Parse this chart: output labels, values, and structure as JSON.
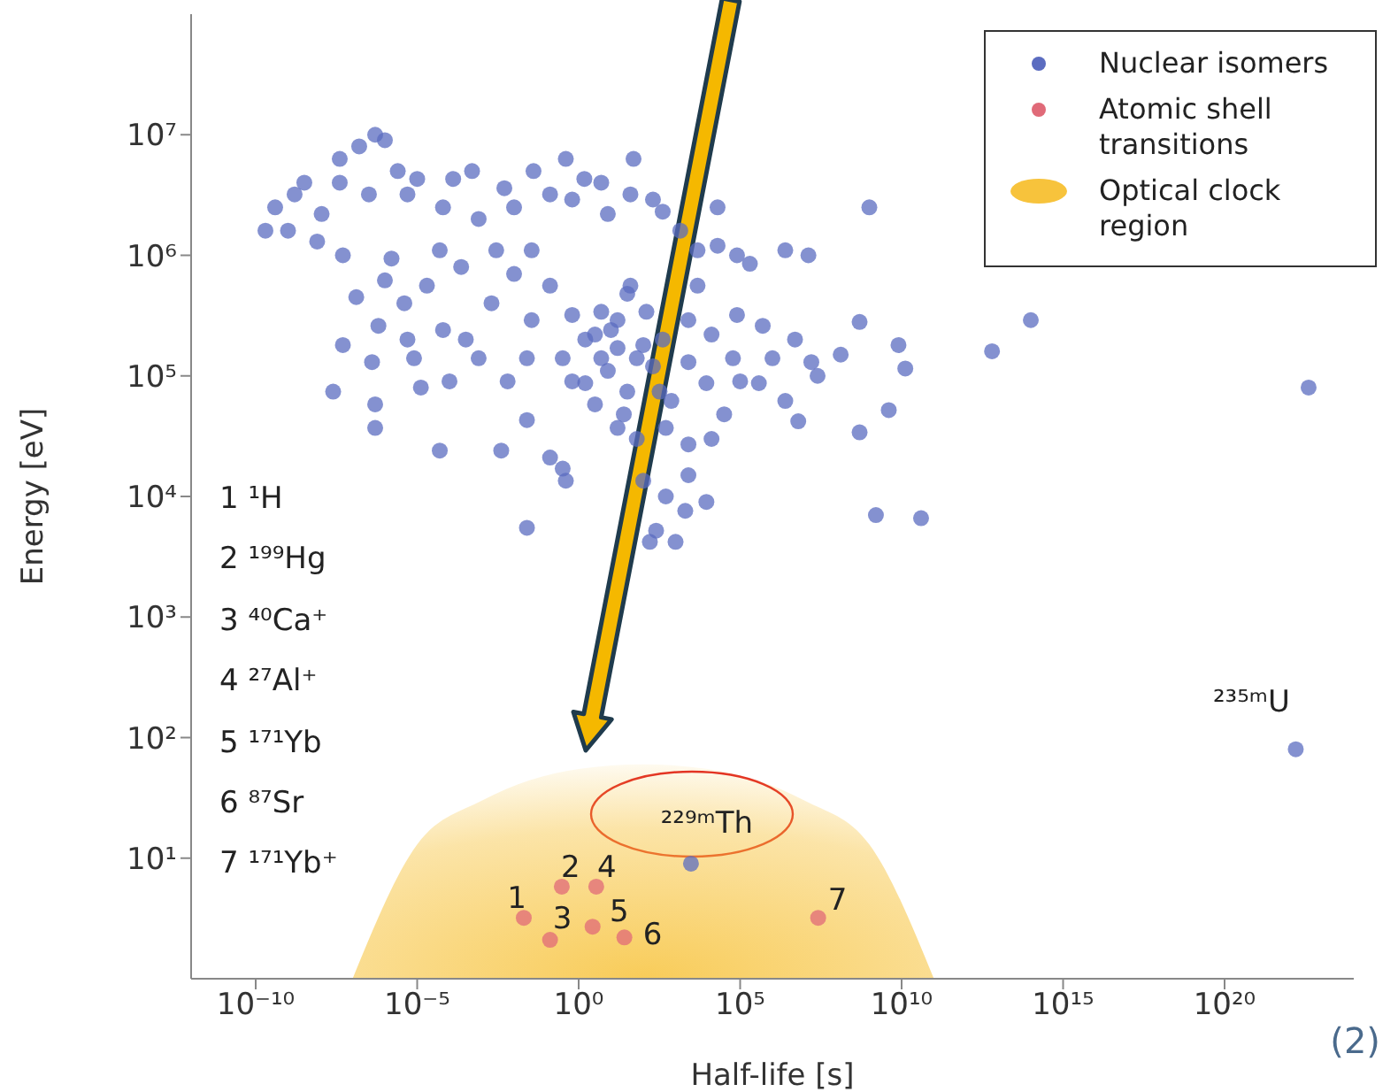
{
  "chart_data": {
    "type": "scatter",
    "xlabel": "Half-life [s]",
    "ylabel": "Energy [eV]",
    "log": "xy",
    "legend": "top right",
    "xlim": [
      1e-12,
      1e+24
    ],
    "ylim": [
      1,
      100000000.0
    ],
    "xticks": [
      {
        "value": 1e-10,
        "label": "10⁻¹⁰"
      },
      {
        "value": 1e-05,
        "label": "10⁻⁵"
      },
      {
        "value": 1,
        "label": "10⁰"
      },
      {
        "value": 100000.0,
        "label": "10⁵"
      },
      {
        "value": 10000000000.0,
        "label": "10¹⁰"
      },
      {
        "value": 1000000000000000.0,
        "label": "10¹⁵"
      },
      {
        "value": 1e+20,
        "label": "10²⁰"
      }
    ],
    "yticks": [
      {
        "value": 10,
        "label": "10¹"
      },
      {
        "value": 100,
        "label": "10²"
      },
      {
        "value": 1000,
        "label": "10³"
      },
      {
        "value": 10000,
        "label": "10⁴"
      },
      {
        "value": 100000,
        "label": "10⁵"
      },
      {
        "value": 1000000,
        "label": "10⁶"
      },
      {
        "value": 10000000,
        "label": "10⁷"
      }
    ],
    "series": [
      {
        "name": "Nuclear isomers",
        "color": "#5b6cc0",
        "marker": "circle",
        "x": [
          2e-10,
          4e-10,
          3.2e-09,
          4e-08,
          1.6e-07,
          5e-07,
          1e-06,
          2.5e-06,
          0.0005,
          0.04,
          0.4,
          50,
          4e-08,
          3.2e-07,
          5e-06,
          6.3e-05,
          0.0008,
          0.01,
          0.13,
          0.63,
          8,
          40,
          200,
          20000.0,
          2500000.0,
          13000000.0,
          1000000000.0,
          1e-09,
          8e-09,
          5e-08,
          1.3e-07,
          1e-06,
          6.3e-07,
          5e-08,
          4e-07,
          4e-06,
          5e-05,
          8e-06,
          1.3e-05,
          0.0001,
          0.00032,
          0.002,
          0.01,
          0.025,
          0.0063,
          0.13,
          0.63,
          3.2,
          16,
          40,
          100,
          8,
          0.63,
          0.32,
          3.2,
          25,
          320,
          2500,
          13000.0,
          80000.0,
          500000.0,
          5000000.0,
          16000000.0,
          25000000.0,
          1000000.0,
          100000.0,
          32000.0,
          13000.0,
          2500,
          500,
          63,
          6300000.0,
          130000000.0,
          500000000.0,
          4000000000.0,
          500000000.0,
          2.5e-08,
          5e-07,
          5e-07,
          5e-05,
          0.004,
          0.025,
          0.13,
          0.32,
          0.4,
          16,
          100,
          500,
          2500,
          2000,
          9000,
          250,
          160,
          1000,
          0.025,
          1600000000.0,
          5,
          10,
          1.6,
          63,
          16,
          200,
          5,
          125,
          32,
          400,
          100000000000000.0,
          6300000000000.0,
          4e+22,
          40000000000.0,
          13000000000.0,
          8000000000.0,
          200000.0,
          80000.0,
          20000.0,
          1.6e-09,
          1.1e-08,
          1e-05,
          0.00013,
          0.005,
          1.5,
          5,
          400,
          1400,
          4800,
          1.6e-06,
          2e-05,
          0.00023,
          0.0028,
          0.035,
          0.0008,
          6.3e-05,
          5e-06,
          0.035,
          1.6,
          32,
          740,
          9000,
          2500,
          4800,
          60000.0,
          380000.0,
          2500000.0,
          3000,
          1.6e+22
        ],
        "values": [
          1600000.0,
          2500000.0,
          4000000.0,
          6300000.0,
          8000000.0,
          10000000.0,
          9000000.0,
          5000000.0,
          5000000.0,
          5000000.0,
          6300000.0,
          6300000.0,
          4000000.0,
          3200000.0,
          3200000.0,
          2500000.0,
          2000000.0,
          2500000.0,
          3200000.0,
          2900000.0,
          2200000.0,
          3200000.0,
          2900000.0,
          2500000.0,
          1100000.0,
          1000000.0,
          2500000.0,
          1600000.0,
          1300000.0,
          1000000.0,
          450000.0,
          620000.0,
          260000.0,
          180000.0,
          130000.0,
          400000.0,
          1100000.0,
          140000.0,
          80000.0,
          90000.0,
          200000.0,
          400000.0,
          700000.0,
          140000.0,
          90000.0,
          560000.0,
          320000.0,
          220000.0,
          290000.0,
          560000.0,
          180000.0,
          110000.0,
          90000.0,
          140000.0,
          58000.0,
          48000.0,
          74000.0,
          130000.0,
          220000.0,
          320000.0,
          260000.0,
          200000.0,
          130000.0,
          100000.0,
          140000.0,
          90000.0,
          48000.0,
          30000.0,
          27000.0,
          37000.0,
          30000.0,
          42000.0,
          150000.0,
          280000.0,
          52000.0,
          34000.0,
          74000.0,
          58000.0,
          37000.0,
          24000.0,
          24000.0,
          43000.0,
          21000.0,
          17000.0,
          13500.0,
          37000.0,
          13500.0,
          10000.0,
          15000.0,
          7600.0,
          9000.0,
          5200.0,
          4200.0,
          4200.0,
          5500.0,
          7000.0,
          340000.0,
          240000.0,
          200000.0,
          140000.0,
          170000.0,
          120000.0,
          140000.0,
          340000.0,
          480000.0,
          200000.0,
          290000.0,
          160000.0,
          80000.0,
          6600.0,
          115000.0,
          180000.0,
          850000.0,
          1000000.0,
          1200000.0,
          3200000.0,
          2200000.0,
          4300000.0,
          4300000.0,
          3600000.0,
          4300000.0,
          4000000.0,
          2300000.0,
          1600000.0,
          1100000.0,
          940000.0,
          560000.0,
          800000.0,
          1100000.0,
          1100000.0,
          140000.0,
          240000.0,
          200000.0,
          290000.0,
          87000.0,
          74000.0,
          62000.0,
          87000.0,
          290000.0,
          560000.0,
          140000.0,
          87000.0,
          62000.0,
          9,
          80
        ]
      },
      {
        "name": "Atomic shell transitions",
        "color": "#e06a78",
        "marker": "circle",
        "x": [
          0.02,
          0.3,
          0.13,
          3.5,
          2.7,
          26,
          26000000.0
        ],
        "values": [
          3.2,
          5.8,
          2.1,
          5.8,
          2.7,
          2.2,
          3.2
        ]
      },
      {
        "name": "Optical clock region",
        "type": "area",
        "color": "#f7c33c",
        "x": [
          1e-07,
          1e-05,
          0.001,
          1,
          100,
          10000.0,
          10000000.0,
          1000000000.0,
          100000000000.0
        ],
        "values": [
          1,
          13,
          30,
          55,
          60,
          55,
          30,
          13,
          1
        ]
      }
    ],
    "annotations": [
      "1 ¹H",
      "2 ¹⁹⁹Hg",
      "3 ⁴⁰Ca⁺",
      "4 ²⁷Al⁺",
      "5 ¹⁷¹Yb",
      "6 ⁸⁷Sr",
      "7 ¹⁷¹Yb⁺",
      {
        "text": "1",
        "x": 0.02,
        "y": 3.2
      },
      {
        "text": "2",
        "x": 0.3,
        "y": 5.8
      },
      {
        "text": "3",
        "x": 0.13,
        "y": 2.1
      },
      {
        "text": "4",
        "x": 3.5,
        "y": 5.8
      },
      {
        "text": "5",
        "x": 2.7,
        "y": 2.7
      },
      {
        "text": "6",
        "x": 26,
        "y": 2.2
      },
      {
        "text": "7",
        "x": 26000000.0,
        "y": 3.2
      },
      {
        "text": "²²⁹ᵐTh",
        "x": 3000,
        "y": 9
      },
      {
        "text": "²³⁵ᵐU",
        "x": 1.6e+22,
        "y": 80
      },
      "(2)"
    ]
  }
}
